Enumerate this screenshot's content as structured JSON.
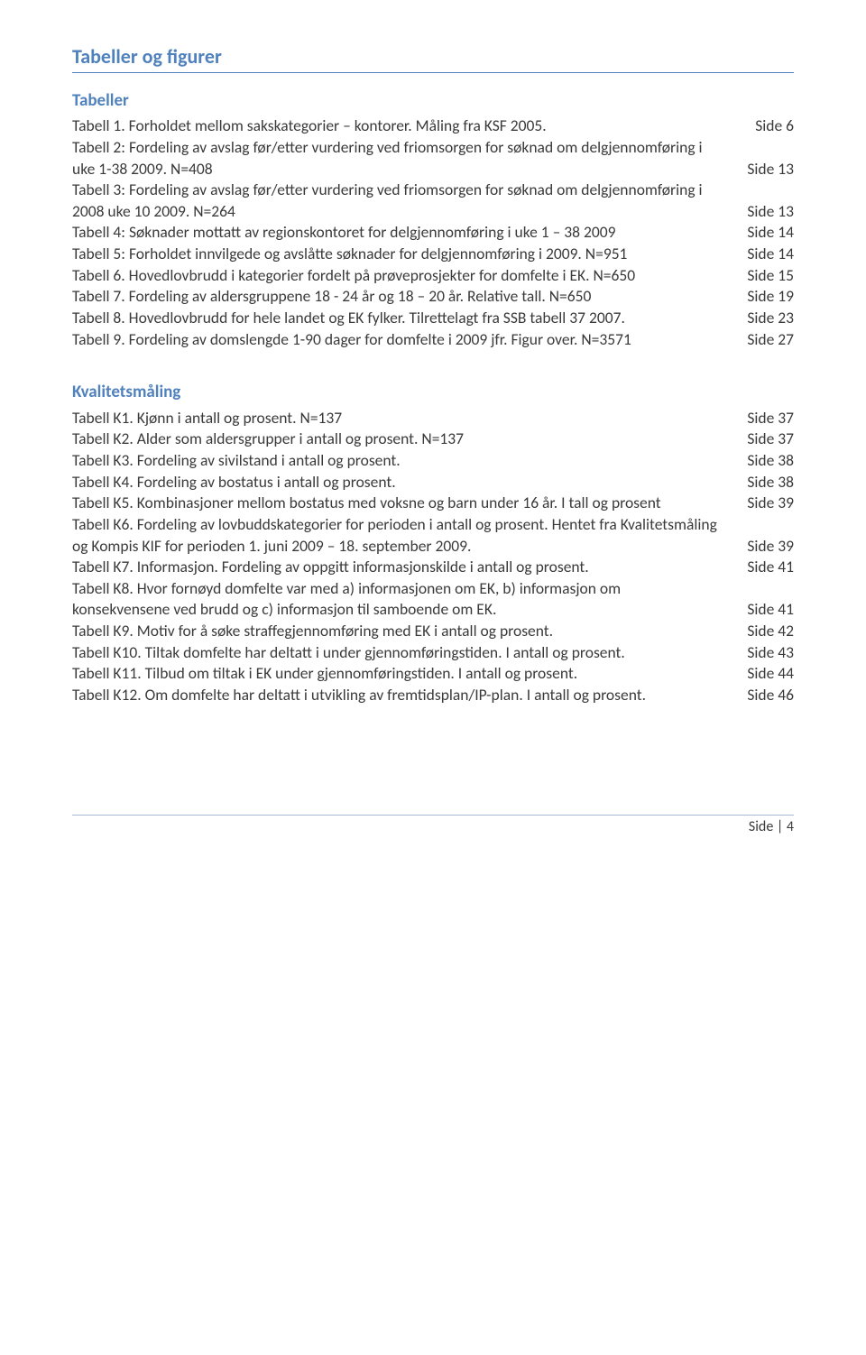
{
  "colors": {
    "heading": "#4f81bd",
    "body_text": "#3a3a3a",
    "hr": "#a9b9d4",
    "background": "#ffffff"
  },
  "typography": {
    "body_fontsize_pt": 13,
    "heading_main_fontsize_pt": 16,
    "heading_sub_fontsize_pt": 14,
    "font_family": "Calibri"
  },
  "headings": {
    "main": "Tabeller og figurer",
    "tabeller": "Tabeller",
    "kvalitet": "Kvalitetsmåling"
  },
  "tabeller": [
    {
      "text": "Tabell 1. Forholdet mellom sakskategorier – kontorer. Måling fra KSF 2005.",
      "page": "Side 6"
    },
    {
      "text": "Tabell 2: Fordeling av avslag før/etter vurdering ved friomsorgen for søknad om delgjennomføring i uke 1-38 2009. N=408",
      "page": "Side 13"
    },
    {
      "text": "Tabell 3: Fordeling av avslag før/etter vurdering ved friomsorgen for søknad om delgjennomføring i 2008 uke 10 2009. N=264",
      "page": "Side 13"
    },
    {
      "text": "Tabell 4: Søknader mottatt av regionskontoret for delgjennomføring i uke 1 – 38 2009",
      "page": "Side 14"
    },
    {
      "text": "Tabell 5: Forholdet innvilgede og avslåtte søknader for delgjennomføring i 2009. N=951",
      "page": "Side 14"
    },
    {
      "text": "Tabell 6. Hovedlovbrudd i kategorier fordelt på prøveprosjekter for domfelte i EK. N=650",
      "page": "Side 15"
    },
    {
      "text": "Tabell 7. Fordeling av aldersgruppene 18 - 24 år og 18 – 20 år. Relative tall. N=650",
      "page": "Side 19"
    },
    {
      "text": "Tabell 8. Hovedlovbrudd for hele landet og EK fylker. Tilrettelagt fra SSB tabell 37 2007.",
      "page": "Side 23"
    },
    {
      "text": "Tabell 9. Fordeling av domslengde 1-90 dager for domfelte i 2009 jfr. Figur over. N=3571",
      "page": "Side 27"
    }
  ],
  "kvalitet": [
    {
      "text": "Tabell K1. Kjønn i antall og prosent. N=137",
      "page": "Side 37"
    },
    {
      "text": "Tabell K2. Alder som aldersgrupper i antall og prosent. N=137",
      "page": "Side 37"
    },
    {
      "text": "Tabell K3. Fordeling av sivilstand i antall og prosent.",
      "page": "Side 38"
    },
    {
      "text": "Tabell K4. Fordeling av bostatus i antall og prosent.",
      "page": "Side 38"
    },
    {
      "text": "Tabell K5. Kombinasjoner mellom bostatus med voksne og barn under 16 år. I tall og prosent",
      "page": "Side 39"
    },
    {
      "text": "Tabell K6. Fordeling av lovbuddskategorier for perioden i antall og prosent. Hentet fra Kvalitetsmåling og Kompis KIF for perioden 1. juni 2009 – 18. september 2009.",
      "page": "Side 39"
    },
    {
      "text": "Tabell K7. Informasjon. Fordeling av oppgitt informasjonskilde i antall og prosent.",
      "page": "Side 41"
    },
    {
      "text": "Tabell K8. Hvor fornøyd domfelte var med a) informasjonen om EK, b) informasjon om konsekvensene ved brudd og c) informasjon til samboende om EK.",
      "page": "Side 41"
    },
    {
      "text": "Tabell K9. Motiv for å søke straffegjennomføring med EK i antall og prosent.",
      "page": "Side 42"
    },
    {
      "text": "Tabell K10. Tiltak domfelte har deltatt i under gjennomføringstiden. I antall og prosent.",
      "page": "Side 43"
    },
    {
      "text": "Tabell K11. Tilbud om tiltak i EK under gjennomføringstiden. I antall og prosent.",
      "page": "Side 44"
    },
    {
      "text": "Tabell K12. Om domfelte har deltatt i utvikling av fremtidsplan/IP-plan. I antall og prosent.",
      "page": "Side 46"
    }
  ],
  "footer": "Side | 4"
}
